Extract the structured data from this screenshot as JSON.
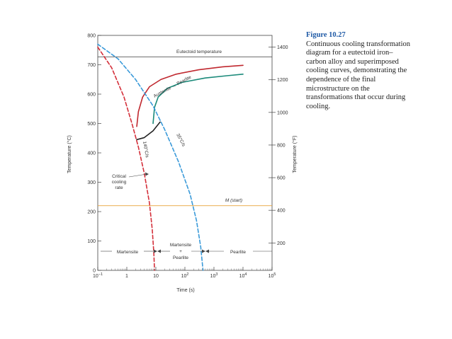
{
  "caption": {
    "figure_number": "Figure 10.27",
    "text": "Continuous cooling transformation diagram for a eutectoid iron–carbon alloy and superimposed cooling curves, demonstrating the dependence of the final microstructure on the transformations that occur during cooling."
  },
  "chart_data": {
    "type": "line",
    "xlabel": "Time (s)",
    "ylabel": "Temperature (°C)",
    "ylabel_right": "Temperature (°F)",
    "x_scale": "log",
    "xlim": [
      0.1,
      100000
    ],
    "ylim": [
      0,
      800
    ],
    "x_ticks": [
      {
        "v": 0.1,
        "base": "10",
        "exp": "−1"
      },
      {
        "v": 1,
        "base": "1",
        "exp": ""
      },
      {
        "v": 10,
        "base": "10",
        "exp": ""
      },
      {
        "v": 100,
        "base": "10",
        "exp": "2"
      },
      {
        "v": 1000,
        "base": "10",
        "exp": "3"
      },
      {
        "v": 10000,
        "base": "10",
        "exp": "4"
      },
      {
        "v": 100000,
        "base": "10",
        "exp": "5"
      }
    ],
    "y_ticks": [
      "0",
      "100",
      "200",
      "300",
      "400",
      "500",
      "600",
      "700",
      "800"
    ],
    "y2_ticks": [
      "200",
      "400",
      "600",
      "800",
      "1000",
      "1200",
      "1400"
    ],
    "annotations": {
      "eutectoid": "Eutectoid temperature",
      "austenite_pearlite": "Austenite → Pearlite",
      "mstart": "M (start)",
      "critical_1": "Critical",
      "critical_2": "cooling",
      "critical_3": "rate",
      "rate_fast": "140°C/s",
      "rate_slow": "35°C/s",
      "martensite": "Martensite",
      "mix_1": "Martensite",
      "mix_2": "+",
      "mix_3": "Pearlite",
      "pearlite": "Pearlite"
    },
    "reference_lines": [
      {
        "name": "Eutectoid temperature",
        "y": 727,
        "color": "#555555"
      },
      {
        "name": "M (start)",
        "y": 220,
        "color": "#e8a33a"
      }
    ],
    "series": [
      {
        "key": "pstart",
        "color": "#c0282f",
        "dash": false,
        "points": [
          [
            2.2,
            490
          ],
          [
            2.5,
            540
          ],
          [
            3.5,
            590
          ],
          [
            6,
            625
          ],
          [
            15,
            650
          ],
          [
            50,
            668
          ],
          [
            300,
            683
          ],
          [
            2000,
            693
          ],
          [
            10000,
            698
          ]
        ]
      },
      {
        "key": "pfinish",
        "color": "#1b8a7a",
        "dash": false,
        "points": [
          [
            8,
            500
          ],
          [
            9,
            555
          ],
          [
            12,
            590
          ],
          [
            25,
            620
          ],
          [
            80,
            640
          ],
          [
            500,
            655
          ],
          [
            3000,
            663
          ],
          [
            10000,
            668
          ]
        ]
      },
      {
        "key": "partial",
        "color": "#222222",
        "dash": false,
        "points": [
          [
            2.2,
            445
          ],
          [
            4,
            452
          ],
          [
            8,
            475
          ],
          [
            14,
            505
          ]
        ]
      },
      {
        "key": "cool_fast",
        "color": "#d42f3a",
        "dash": true,
        "points": [
          [
            0.1,
            760
          ],
          [
            0.3,
            690
          ],
          [
            0.8,
            590
          ],
          [
            1.5,
            500
          ],
          [
            2.5,
            420
          ],
          [
            4,
            330
          ],
          [
            6,
            230
          ],
          [
            7.5,
            140
          ],
          [
            8.5,
            60
          ],
          [
            9,
            0
          ]
        ]
      },
      {
        "key": "cool_slow",
        "color": "#3a9ad9",
        "dash": true,
        "points": [
          [
            0.1,
            770
          ],
          [
            0.5,
            720
          ],
          [
            2,
            650
          ],
          [
            8,
            560
          ],
          [
            20,
            480
          ],
          [
            60,
            370
          ],
          [
            150,
            260
          ],
          [
            250,
            170
          ],
          [
            350,
            80
          ],
          [
            420,
            0
          ]
        ]
      }
    ]
  }
}
